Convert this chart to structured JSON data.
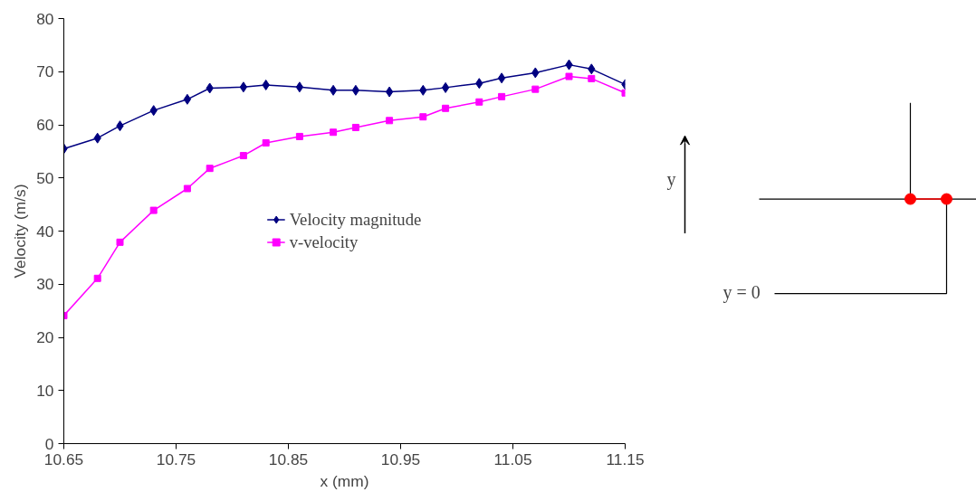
{
  "chart_data": {
    "type": "line",
    "xlabel": "x (mm)",
    "ylabel": "Velocity (m/s)",
    "x": [
      10.65,
      10.68,
      10.7,
      10.73,
      10.76,
      10.78,
      10.81,
      10.83,
      10.86,
      10.89,
      10.91,
      10.94,
      10.97,
      10.99,
      11.02,
      11.04,
      11.07,
      11.1,
      11.12,
      11.15
    ],
    "series": [
      {
        "name": "Velocity magnitude",
        "color": "#000080",
        "marker": "diamond",
        "values": [
          55.5,
          57.5,
          59.8,
          62.7,
          64.8,
          66.9,
          67.1,
          67.5,
          67.1,
          66.5,
          66.5,
          66.2,
          66.5,
          67.0,
          67.8,
          68.8,
          69.8,
          71.3,
          70.5,
          67.6
        ]
      },
      {
        "name": "v-velocity",
        "color": "#ff00ff",
        "marker": "square",
        "values": [
          24.1,
          31.1,
          37.9,
          43.9,
          48.0,
          51.8,
          54.2,
          56.6,
          57.8,
          58.6,
          59.5,
          60.8,
          61.5,
          63.1,
          64.3,
          65.3,
          66.7,
          69.1,
          68.7,
          66.0
        ]
      }
    ],
    "xlim": [
      10.65,
      11.15
    ],
    "xticks": [
      10.65,
      10.75,
      10.85,
      10.95,
      11.05,
      11.15
    ],
    "ylim": [
      0,
      80
    ],
    "yticks": [
      0,
      10,
      20,
      30,
      40,
      50,
      60,
      70,
      80
    ],
    "grid": false,
    "legend": "center",
    "line_style": "solid",
    "annotations": [
      "y",
      "y = 0"
    ]
  }
}
